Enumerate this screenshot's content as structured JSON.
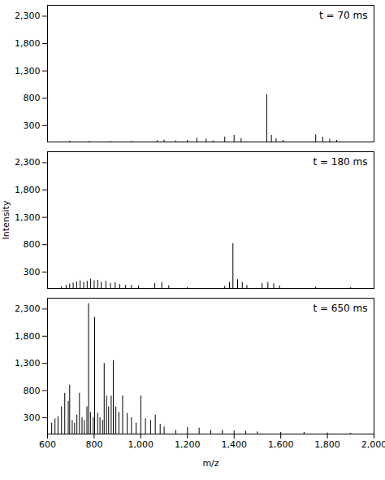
{
  "chart_data": [
    {
      "type": "stem",
      "annotation": "t = 70 ms",
      "color": "#000000",
      "x": [
        695,
        780,
        870,
        960,
        1070,
        1100,
        1150,
        1200,
        1240,
        1280,
        1310,
        1360,
        1400,
        1430,
        1540,
        1560,
        1580,
        1610,
        1750,
        1780,
        1810,
        1840
      ],
      "values": [
        15,
        12,
        10,
        10,
        25,
        35,
        20,
        30,
        70,
        55,
        20,
        90,
        120,
        60,
        870,
        120,
        60,
        30,
        130,
        90,
        50,
        30
      ],
      "xlim": [
        600,
        2000
      ],
      "ylim": [
        0,
        2500
      ],
      "yticks": [
        300,
        800,
        1300,
        1800,
        2300
      ],
      "tick_labels": "y"
    },
    {
      "type": "stem",
      "annotation": "t = 180 ms",
      "color": "#000000",
      "ylabel": "Intensity",
      "x": [
        660,
        680,
        695,
        710,
        725,
        740,
        755,
        770,
        785,
        800,
        815,
        830,
        850,
        870,
        890,
        910,
        935,
        960,
        990,
        1060,
        1090,
        1120,
        1200,
        1360,
        1380,
        1395,
        1415,
        1435,
        1455,
        1520,
        1545,
        1570,
        1595,
        1750,
        1900
      ],
      "values": [
        30,
        55,
        80,
        100,
        120,
        140,
        110,
        130,
        170,
        140,
        150,
        110,
        130,
        90,
        110,
        70,
        60,
        55,
        45,
        90,
        110,
        50,
        20,
        40,
        110,
        820,
        160,
        110,
        55,
        90,
        110,
        85,
        45,
        25,
        15
      ],
      "xlim": [
        600,
        2000
      ],
      "ylim": [
        0,
        2500
      ],
      "yticks": [
        300,
        800,
        1300,
        1800,
        2300
      ],
      "tick_labels": "y"
    },
    {
      "type": "stem",
      "annotation": "t = 650 ms",
      "color": "#000000",
      "xlabel": "m/z",
      "x": [
        618,
        632,
        645,
        660,
        674,
        689,
        695,
        706,
        716,
        726,
        737,
        748,
        758,
        769,
        776,
        784,
        796,
        802,
        815,
        825,
        836,
        843,
        853,
        862,
        873,
        882,
        893,
        906,
        922,
        942,
        960,
        980,
        1000,
        1020,
        1042,
        1062,
        1083,
        1100,
        1150,
        1200,
        1250,
        1300,
        1350,
        1400,
        1450,
        1500,
        1200,
        1600,
        1700,
        1800,
        1900
      ],
      "values": [
        200,
        280,
        320,
        500,
        750,
        600,
        900,
        250,
        200,
        350,
        750,
        300,
        250,
        500,
        2400,
        400,
        300,
        2150,
        380,
        300,
        250,
        1300,
        700,
        500,
        700,
        1350,
        500,
        400,
        700,
        380,
        300,
        200,
        700,
        280,
        250,
        350,
        180,
        130,
        70,
        60,
        110,
        70,
        70,
        60,
        50,
        40,
        60,
        30,
        30,
        20,
        15
      ],
      "xlim": [
        600,
        2000
      ],
      "ylim": [
        0,
        2500
      ],
      "yticks": [
        300,
        800,
        1300,
        1800,
        2300
      ],
      "xticks": [
        600,
        800,
        1000,
        1200,
        1400,
        1600,
        1800,
        2000
      ]
    }
  ]
}
